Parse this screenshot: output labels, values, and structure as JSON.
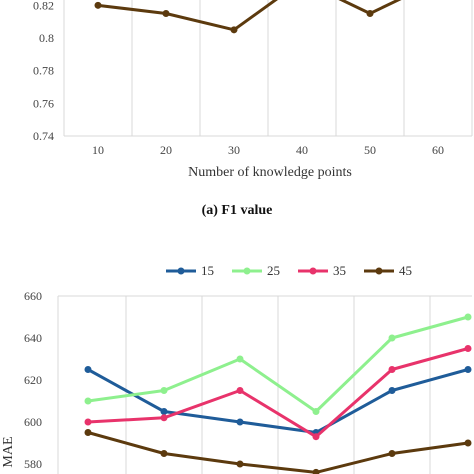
{
  "chart_data": [
    {
      "type": "line",
      "caption": "(a) F1 value",
      "xlabel": "Number of knowledge points",
      "x": [
        10,
        20,
        30,
        40,
        50,
        60
      ],
      "ylim": [
        0.74,
        0.82
      ],
      "yticks": [
        "0.74",
        "0.76",
        "0.78",
        "0.8",
        "0.82"
      ],
      "grid": true,
      "series": [
        {
          "color": "#5c3a0e",
          "values": [
            0.82,
            0.815,
            0.805,
            0.835,
            0.815,
            0.835
          ]
        }
      ]
    },
    {
      "type": "line",
      "ylabel": "MAE",
      "categories": [
        "",
        "",
        "",
        "",
        "",
        ""
      ],
      "ylim": [
        580,
        660
      ],
      "yticks": [
        "580",
        "600",
        "620",
        "640",
        "660"
      ],
      "grid": true,
      "legend_position": "top",
      "series": [
        {
          "name": "15",
          "color": "#1f5c99",
          "values": [
            625,
            605,
            600,
            595,
            615,
            625
          ]
        },
        {
          "name": "25",
          "color": "#8ef08e",
          "values": [
            610,
            615,
            630,
            605,
            640,
            650
          ]
        },
        {
          "name": "35",
          "color": "#e8336b",
          "values": [
            600,
            602,
            615,
            593,
            625,
            635
          ]
        },
        {
          "name": "45",
          "color": "#5c3a0e",
          "values": [
            595,
            585,
            580,
            576,
            585,
            590
          ]
        }
      ]
    }
  ]
}
